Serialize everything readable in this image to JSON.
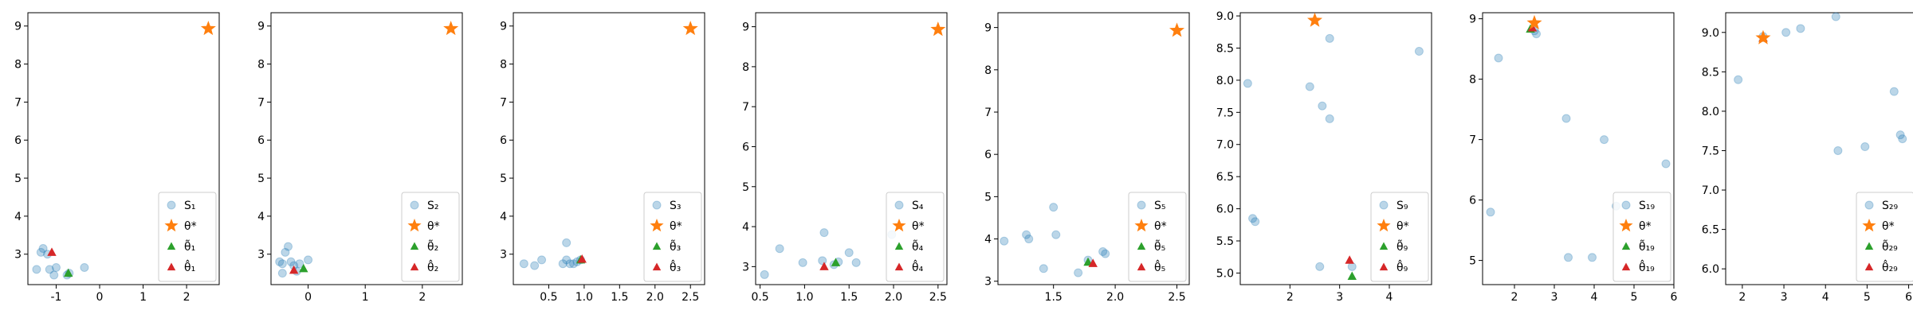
{
  "colors": {
    "samples": "#1f77b4",
    "samples_alpha": 0.3,
    "theta_star": "#ff7f0e",
    "theta_tilde": "#2ca02c",
    "theta_hat": "#d62728",
    "axes": "#000000",
    "background": "#ffffff"
  },
  "chart_data": [
    {
      "type": "scatter",
      "xlim": [
        -1.65,
        2.75
      ],
      "ylim": [
        2.2,
        9.35
      ],
      "xticks": [
        -1,
        0,
        1,
        2
      ],
      "yticks": [
        3,
        4,
        5,
        6,
        7,
        8,
        9
      ],
      "grid": false,
      "legend": "lower-right",
      "legend_labels": {
        "samples": "S₁",
        "theta_star": "θ*",
        "theta_tilde": "θ̃₁",
        "theta_hat": "θ̂₁"
      },
      "samples": [
        [
          -1.35,
          3.05
        ],
        [
          -1.3,
          3.15
        ],
        [
          -1.45,
          2.6
        ],
        [
          -1.15,
          2.6
        ],
        [
          -1.05,
          2.45
        ],
        [
          -1.0,
          2.65
        ],
        [
          -0.75,
          2.45
        ],
        [
          -0.7,
          2.5
        ],
        [
          -0.35,
          2.65
        ],
        [
          -1.2,
          3.0
        ]
      ],
      "theta_star": [
        2.5,
        8.93
      ],
      "theta_tilde": [
        -0.72,
        2.5
      ],
      "theta_hat": [
        -1.1,
        3.05
      ]
    },
    {
      "type": "scatter",
      "xlim": [
        -0.65,
        2.7
      ],
      "ylim": [
        2.2,
        9.35
      ],
      "xticks": [
        0,
        1,
        2
      ],
      "yticks": [
        3,
        4,
        5,
        6,
        7,
        8,
        9
      ],
      "grid": false,
      "legend": "lower-right",
      "legend_labels": {
        "samples": "S₂",
        "theta_star": "θ*",
        "theta_tilde": "θ̃₂",
        "theta_hat": "θ̂₂"
      },
      "samples": [
        [
          -0.5,
          2.8
        ],
        [
          -0.45,
          2.75
        ],
        [
          -0.35,
          3.2
        ],
        [
          -0.4,
          3.05
        ],
        [
          -0.3,
          2.8
        ],
        [
          -0.25,
          2.7
        ],
        [
          -0.2,
          2.55
        ],
        [
          -0.15,
          2.75
        ],
        [
          0.0,
          2.85
        ],
        [
          -0.45,
          2.5
        ]
      ],
      "theta_star": [
        2.5,
        8.93
      ],
      "theta_tilde": [
        -0.08,
        2.62
      ],
      "theta_hat": [
        -0.25,
        2.58
      ]
    },
    {
      "type": "scatter",
      "xlim": [
        0.0,
        2.7
      ],
      "ylim": [
        2.2,
        9.35
      ],
      "xticks": [
        0.5,
        1.0,
        1.5,
        2.0,
        2.5
      ],
      "yticks": [
        3,
        4,
        5,
        6,
        7,
        8,
        9
      ],
      "grid": false,
      "legend": "lower-right",
      "legend_labels": {
        "samples": "S₃",
        "theta_star": "θ*",
        "theta_tilde": "θ̃₃",
        "theta_hat": "θ̂₃"
      },
      "samples": [
        [
          0.15,
          2.75
        ],
        [
          0.3,
          2.7
        ],
        [
          0.4,
          2.85
        ],
        [
          0.7,
          2.75
        ],
        [
          0.75,
          2.85
        ],
        [
          0.75,
          3.3
        ],
        [
          0.8,
          2.75
        ],
        [
          0.85,
          2.75
        ],
        [
          0.9,
          2.8
        ],
        [
          0.95,
          2.85
        ]
      ],
      "theta_star": [
        2.5,
        8.93
      ],
      "theta_tilde": [
        0.95,
        2.85
      ],
      "theta_hat": [
        0.97,
        2.87
      ]
    },
    {
      "type": "scatter",
      "xlim": [
        0.45,
        2.6
      ],
      "ylim": [
        2.55,
        9.35
      ],
      "xticks": [
        0.5,
        1.0,
        1.5,
        2.0,
        2.5
      ],
      "yticks": [
        3,
        4,
        5,
        6,
        7,
        8,
        9
      ],
      "grid": false,
      "legend": "lower-right",
      "legend_labels": {
        "samples": "S₄",
        "theta_star": "θ*",
        "theta_tilde": "θ̃₄",
        "theta_hat": "θ̂₄"
      },
      "samples": [
        [
          0.55,
          2.8
        ],
        [
          0.72,
          3.45
        ],
        [
          0.98,
          3.1
        ],
        [
          1.2,
          3.15
        ],
        [
          1.22,
          3.85
        ],
        [
          1.33,
          3.05
        ],
        [
          1.5,
          3.35
        ],
        [
          1.58,
          3.1
        ],
        [
          1.98,
          3.8
        ],
        [
          1.38,
          3.12
        ]
      ],
      "theta_star": [
        2.5,
        8.93
      ],
      "theta_tilde": [
        1.35,
        3.1
      ],
      "theta_hat": [
        1.22,
        3.0
      ]
    },
    {
      "type": "scatter",
      "xlim": [
        1.05,
        2.6
      ],
      "ylim": [
        2.92,
        9.35
      ],
      "xticks": [
        1.5,
        2.0,
        2.5
      ],
      "yticks": [
        3,
        4,
        5,
        6,
        7,
        8,
        9
      ],
      "grid": false,
      "legend": "lower-right",
      "legend_labels": {
        "samples": "S₅",
        "theta_star": "θ*",
        "theta_tilde": "θ̃₅",
        "theta_hat": "θ̂₅"
      },
      "samples": [
        [
          1.1,
          3.95
        ],
        [
          1.28,
          4.1
        ],
        [
          1.3,
          4.0
        ],
        [
          1.42,
          3.3
        ],
        [
          1.5,
          4.75
        ],
        [
          1.52,
          4.1
        ],
        [
          1.7,
          3.2
        ],
        [
          1.9,
          3.7
        ],
        [
          1.92,
          3.65
        ],
        [
          1.78,
          3.5
        ]
      ],
      "theta_star": [
        2.5,
        8.93
      ],
      "theta_tilde": [
        1.78,
        3.45
      ],
      "theta_hat": [
        1.82,
        3.42
      ]
    },
    {
      "type": "scatter",
      "xlim": [
        1.0,
        4.85
      ],
      "ylim": [
        4.82,
        9.05
      ],
      "xticks": [
        2,
        3,
        4
      ],
      "yticks": [
        5.0,
        5.5,
        6.0,
        6.5,
        7.0,
        7.5,
        8.0,
        8.5,
        9.0
      ],
      "grid": false,
      "legend": "lower-right",
      "legend_labels": {
        "samples": "S₉",
        "theta_star": "θ*",
        "theta_tilde": "θ̃₉",
        "theta_hat": "θ̂₉"
      },
      "samples": [
        [
          1.15,
          7.95
        ],
        [
          1.3,
          5.8
        ],
        [
          2.4,
          7.9
        ],
        [
          2.6,
          5.1
        ],
        [
          2.65,
          7.6
        ],
        [
          2.8,
          7.4
        ],
        [
          2.8,
          8.65
        ],
        [
          3.25,
          5.1
        ],
        [
          4.6,
          8.45
        ],
        [
          1.25,
          5.85
        ]
      ],
      "theta_star": [
        2.5,
        8.93
      ],
      "theta_tilde": [
        3.25,
        4.95
      ],
      "theta_hat": [
        3.2,
        5.2
      ]
    },
    {
      "type": "scatter",
      "xlim": [
        1.2,
        6.0
      ],
      "ylim": [
        4.6,
        9.1
      ],
      "xticks": [
        2,
        3,
        4,
        5,
        6
      ],
      "yticks": [
        5,
        6,
        7,
        8,
        9
      ],
      "grid": false,
      "legend": "lower-right",
      "legend_labels": {
        "samples": "S₁₉",
        "theta_star": "θ*",
        "theta_tilde": "θ̃₁₉",
        "theta_hat": "θ̂₁₉"
      },
      "samples": [
        [
          1.4,
          5.8
        ],
        [
          1.6,
          8.35
        ],
        [
          2.5,
          8.8
        ],
        [
          2.55,
          8.75
        ],
        [
          3.3,
          7.35
        ],
        [
          3.35,
          5.05
        ],
        [
          3.95,
          5.05
        ],
        [
          4.25,
          7.0
        ],
        [
          4.55,
          5.9
        ],
        [
          5.8,
          6.6
        ]
      ],
      "theta_star": [
        2.5,
        8.93
      ],
      "theta_tilde": [
        2.4,
        8.83
      ],
      "theta_hat": [
        2.45,
        8.85
      ]
    },
    {
      "type": "scatter",
      "xlim": [
        1.6,
        6.2
      ],
      "ylim": [
        5.8,
        9.25
      ],
      "xticks": [
        2,
        3,
        4,
        5,
        6
      ],
      "yticks": [
        6.0,
        6.5,
        7.0,
        7.5,
        8.0,
        8.5,
        9.0
      ],
      "grid": false,
      "legend": "lower-right",
      "legend_labels": {
        "samples": "S₂₉",
        "theta_star": "θ*",
        "theta_tilde": "θ̃₂₉",
        "theta_hat": "θ̂₂₉"
      },
      "samples": [
        [
          1.9,
          8.4
        ],
        [
          2.5,
          8.95
        ],
        [
          3.05,
          9.0
        ],
        [
          3.4,
          9.05
        ],
        [
          4.25,
          9.2
        ],
        [
          4.3,
          7.5
        ],
        [
          4.95,
          7.55
        ],
        [
          5.65,
          8.25
        ],
        [
          5.8,
          7.7
        ],
        [
          5.85,
          7.65
        ]
      ],
      "theta_star": [
        2.5,
        8.93
      ],
      "theta_tilde": [
        2.5,
        8.93
      ],
      "theta_hat": [
        2.5,
        8.93
      ]
    }
  ]
}
